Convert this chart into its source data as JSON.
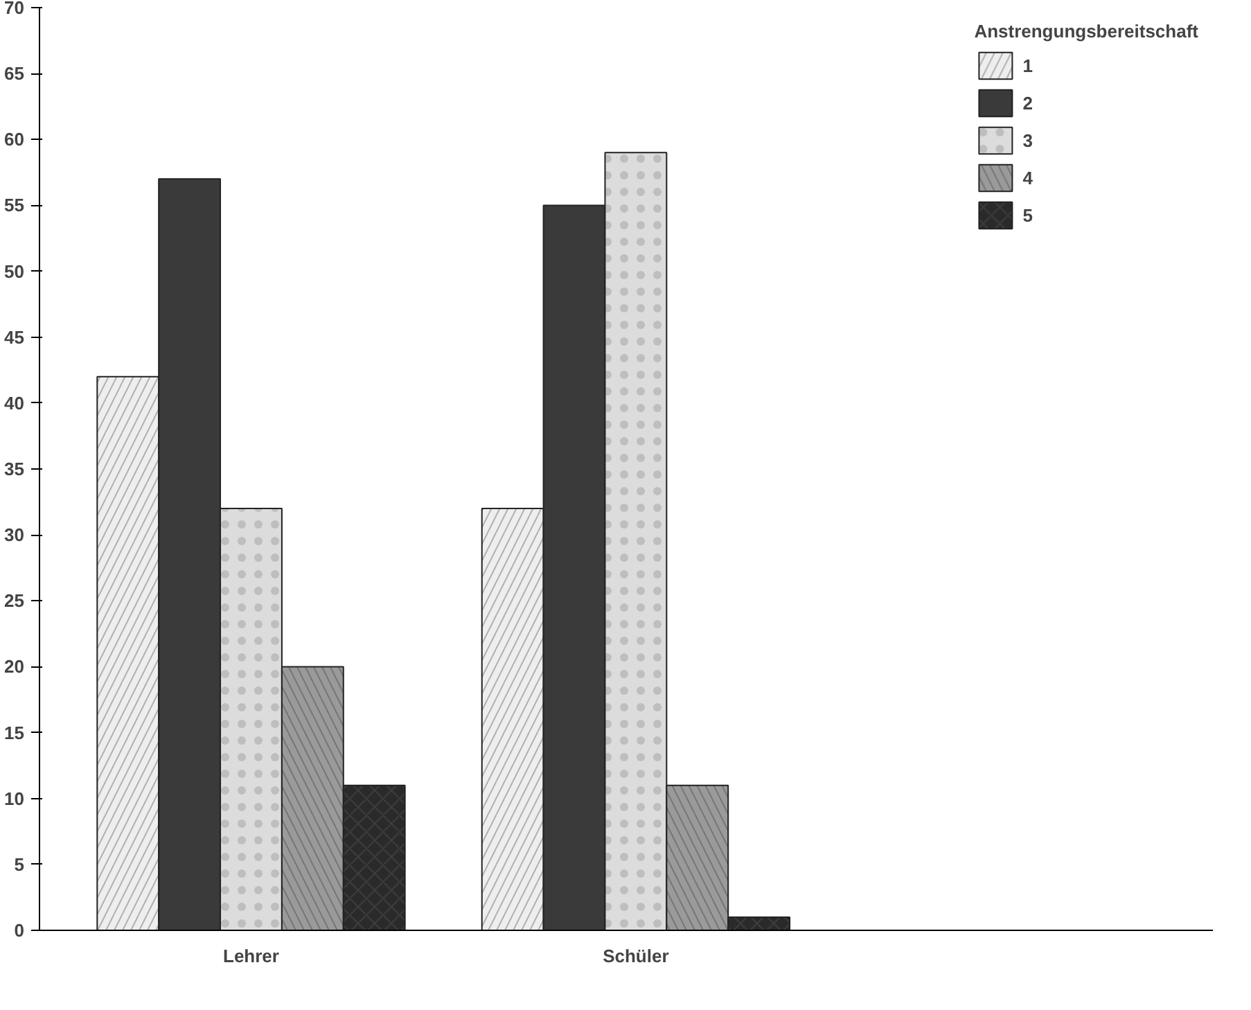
{
  "chart_data": {
    "type": "bar",
    "categories": [
      "Lehrer",
      "Schüler"
    ],
    "legend_title": "Anstrengungsbereitschaft",
    "legend": "top right",
    "grid": false,
    "ylim": [
      0,
      70
    ],
    "yticks": [
      0,
      5,
      10,
      15,
      20,
      25,
      30,
      35,
      40,
      45,
      50,
      55,
      60,
      65,
      70
    ],
    "series": [
      {
        "name": "1",
        "color": "#eeeeee",
        "values": [
          42,
          32
        ]
      },
      {
        "name": "2",
        "color": "#3a3a3a",
        "values": [
          57,
          55
        ]
      },
      {
        "name": "3",
        "color": "#dcdcdc",
        "values": [
          32,
          59
        ]
      },
      {
        "name": "4",
        "color": "#9a9a9a",
        "values": [
          20,
          11
        ]
      },
      {
        "name": "5",
        "color": "#2a2a2a",
        "values": [
          11,
          1
        ]
      }
    ]
  }
}
